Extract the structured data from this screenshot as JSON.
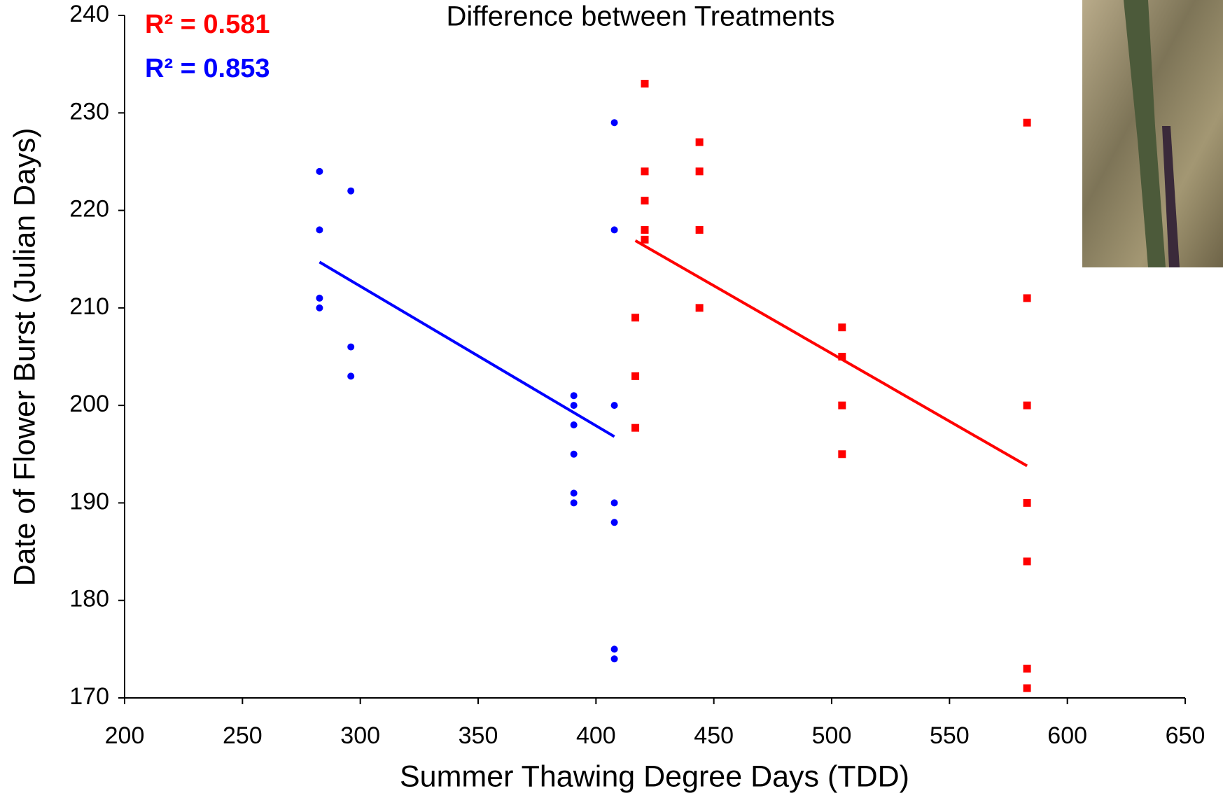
{
  "chart_data": {
    "type": "scatter",
    "title": "Difference between Treatments",
    "x_label": "Summer Thawing Degree Days (TDD)",
    "y_label": "Date of Flower Burst (Julian Days)",
    "xlim": [
      200,
      650
    ],
    "xticks": [
      200,
      250,
      300,
      350,
      400,
      450,
      500,
      550,
      600,
      650
    ],
    "ylim": [
      170,
      240
    ],
    "yticks": [
      170,
      180,
      190,
      200,
      210,
      220,
      230,
      240
    ],
    "grid": false,
    "series": [
      {
        "color": "#ff0000",
        "marker": "square",
        "x": [
          416.7,
          416.7,
          416.7,
          420.7,
          420.7,
          420.7,
          420.7,
          420.7,
          443.9,
          443.9,
          443.9,
          443.9,
          504.4,
          504.4,
          504.4,
          504.4,
          582.9,
          582.9,
          582.9,
          582.9,
          582.9,
          582.9,
          582.9
        ],
        "values": [
          209,
          203,
          197.7,
          233,
          224,
          221,
          218,
          217,
          227,
          224,
          218,
          210,
          208,
          205,
          200,
          195,
          229,
          211,
          200,
          190,
          184,
          173,
          171
        ],
        "trend_x": [
          416.7,
          582.9
        ],
        "trend_values": [
          216.9,
          193.8
        ],
        "annotation": "R² = 0.581"
      },
      {
        "color": "#0000ff",
        "marker": "circle",
        "x": [
          282.7,
          282.7,
          282.7,
          282.7,
          296,
          296,
          296,
          390.6,
          390.6,
          390.6,
          390.6,
          390.6,
          390.6,
          407.8,
          407.8,
          407.8,
          407.8,
          407.8,
          407.8,
          407.8
        ],
        "values": [
          224,
          218,
          211,
          210,
          222,
          206,
          203,
          201,
          200,
          198,
          195,
          191,
          190,
          229,
          218,
          200,
          190,
          188,
          175,
          174
        ],
        "trend_x": [
          282.7,
          407.8
        ],
        "trend_values": [
          214.7,
          196.8
        ],
        "annotation": "R² = 0.853"
      }
    ]
  }
}
